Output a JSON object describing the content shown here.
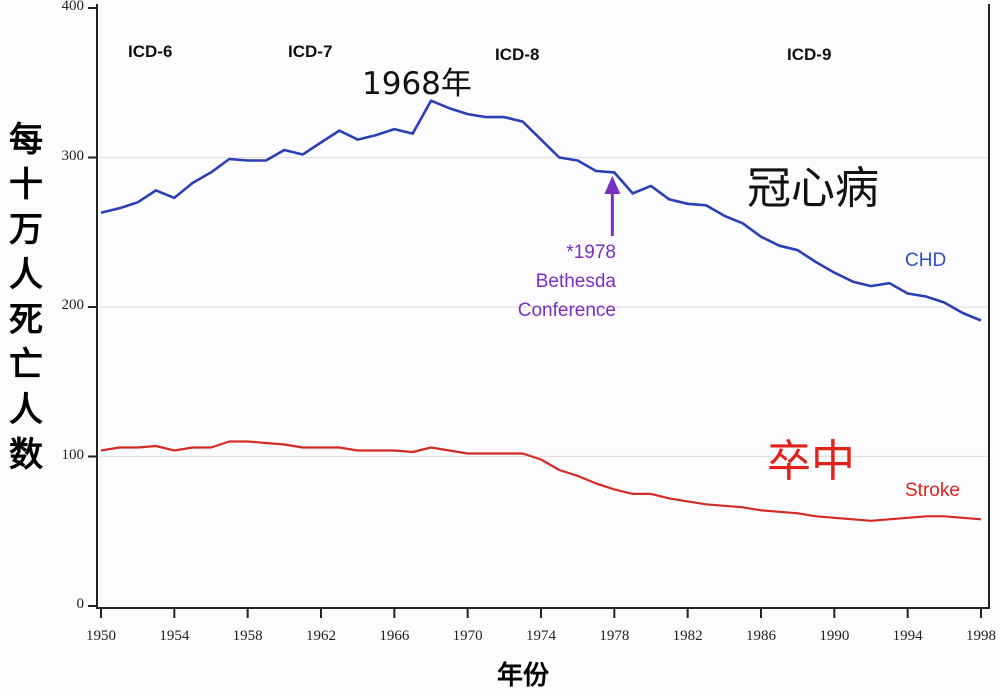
{
  "chart_data": {
    "type": "line",
    "title": "",
    "xlabel": "年份",
    "ylabel": "每十万人死亡人数",
    "xlim": [
      1950,
      1998
    ],
    "ylim": [
      0,
      400
    ],
    "x_ticks": [
      "1950",
      "1954",
      "1958",
      "1962",
      "1966",
      "1970",
      "1974",
      "1978",
      "1982",
      "1986",
      "1990",
      "1994",
      "1998"
    ],
    "y_ticks": [
      "0",
      "100",
      "200",
      "300",
      "400"
    ],
    "grid": "horizontal light gridlines at 100, 200, 300",
    "x": [
      1950,
      1951,
      1952,
      1953,
      1954,
      1955,
      1956,
      1957,
      1958,
      1959,
      1960,
      1961,
      1962,
      1963,
      1964,
      1965,
      1966,
      1967,
      1968,
      1969,
      1970,
      1971,
      1972,
      1973,
      1974,
      1975,
      1976,
      1977,
      1978,
      1979,
      1980,
      1981,
      1982,
      1983,
      1984,
      1985,
      1986,
      1987,
      1988,
      1989,
      1990,
      1991,
      1992,
      1993,
      1994,
      1995,
      1996,
      1997,
      1998
    ],
    "series": [
      {
        "name": "CHD",
        "label_cn": "冠心病",
        "color": "#2a3fb5",
        "values": [
          263,
          266,
          270,
          278,
          273,
          283,
          290,
          299,
          298,
          298,
          305,
          302,
          310,
          318,
          312,
          315,
          319,
          316,
          338,
          333,
          329,
          327,
          327,
          324,
          312,
          300,
          298,
          291,
          290,
          276,
          281,
          272,
          269,
          268,
          261,
          256,
          247,
          241,
          238,
          230,
          223,
          217,
          214,
          216,
          209,
          207,
          203,
          196,
          191
        ]
      },
      {
        "name": "Stroke",
        "label_cn": "卒中",
        "color": "#d42a22",
        "values": [
          104,
          106,
          106,
          107,
          104,
          106,
          106,
          110,
          110,
          109,
          108,
          106,
          106,
          106,
          104,
          104,
          104,
          103,
          106,
          104,
          102,
          102,
          102,
          102,
          98,
          91,
          87,
          82,
          78,
          75,
          75,
          72,
          70,
          68,
          67,
          66,
          64,
          63,
          62,
          60,
          59,
          58,
          57,
          58,
          59,
          60,
          60,
          59,
          58
        ]
      }
    ],
    "annotations": [
      {
        "text": "ICD-6",
        "x": 1953
      },
      {
        "text": "ICD-7",
        "x": 1961
      },
      {
        "text": "ICD-8",
        "x": 1972
      },
      {
        "text": "ICD-9",
        "x": 1988
      },
      {
        "text": "1968年",
        "x": 1968,
        "note": "CHD peak"
      },
      {
        "text": "*1978 Bethesda Conference",
        "x": 1978,
        "arrow": true,
        "color": "#7b2fc0"
      }
    ]
  },
  "labels": {
    "ylabel_chars": [
      "每",
      "十",
      "万",
      "人",
      "死",
      "亡",
      "人",
      "数"
    ],
    "xlabel": "年份",
    "icd6": "ICD-6",
    "icd7": "ICD-7",
    "icd8": "ICD-8",
    "icd9": "ICD-9",
    "peak_year": "1968年",
    "chd_cn": "冠心病",
    "chd_en": "CHD",
    "stroke_cn": "卒中",
    "stroke_en": "Stroke",
    "bethesda_line1": "*1978",
    "bethesda_line2": "Bethesda",
    "bethesda_line3": "Conference"
  },
  "colors": {
    "chd": "#2a3fb5",
    "stroke": "#d42a22",
    "annotation": "#7b2fc0",
    "chd_label": "#2d4fc4",
    "stroke_label": "#e0221a"
  }
}
